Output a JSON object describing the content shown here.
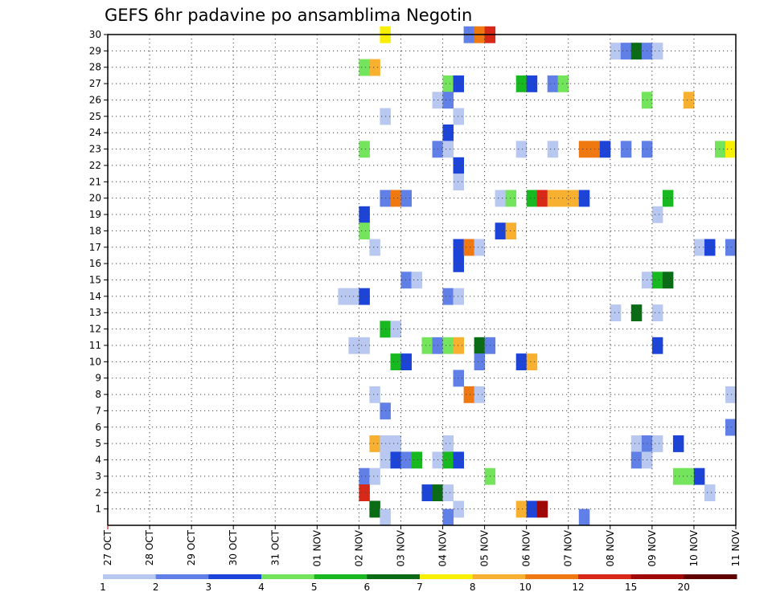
{
  "chart_data": {
    "type": "heatmap",
    "title": "GEFS 6hr padavine po ansamblima Negotin",
    "x_ticks": [
      "27 OCT",
      "28 OCT",
      "29 OCT",
      "30 OCT",
      "31 OCT",
      "01 NOV",
      "02 NOV",
      "03 NOV",
      "04 NOV",
      "05 NOV",
      "06 NOV",
      "07 NOV",
      "08 NOV",
      "09 NOV",
      "10 NOV",
      "11 NOV"
    ],
    "y_ticks": [
      "1",
      "2",
      "3",
      "4",
      "5",
      "6",
      "7",
      "8",
      "9",
      "10",
      "11",
      "12",
      "13",
      "14",
      "15",
      "16",
      "17",
      "18",
      "19",
      "20",
      "21",
      "22",
      "23",
      "24",
      "25",
      "26",
      "27",
      "28",
      "29",
      "30"
    ],
    "xlim_days": [
      0,
      15
    ],
    "ylim": [
      0,
      30
    ],
    "grid": true,
    "legend_position": "bottom",
    "legend_labels": [
      "1",
      "2",
      "3",
      "4",
      "5",
      "6",
      "7",
      "8",
      "10",
      "12",
      "15",
      "20"
    ],
    "legend_colors": [
      "#b8c8f0",
      "#6080e8",
      "#1c44d8",
      "#74e45c",
      "#18b820",
      "#0a6c14",
      "#f8f000",
      "#f8b030",
      "#f07810",
      "#d82818",
      "#a00808",
      "#600000"
    ],
    "cell_width_days": 0.25,
    "cells": [
      {
        "m": 30,
        "d": 6.5,
        "c": 6
      },
      {
        "m": 30,
        "d": 8.5,
        "c": 1
      },
      {
        "m": 30,
        "d": 8.75,
        "c": 8
      },
      {
        "m": 30,
        "d": 9.0,
        "c": 9
      },
      {
        "m": 29,
        "d": 12.0,
        "c": 0
      },
      {
        "m": 29,
        "d": 12.25,
        "c": 1
      },
      {
        "m": 29,
        "d": 12.5,
        "c": 5
      },
      {
        "m": 29,
        "d": 12.75,
        "c": 1
      },
      {
        "m": 29,
        "d": 13.0,
        "c": 0
      },
      {
        "m": 28,
        "d": 6.0,
        "c": 3
      },
      {
        "m": 28,
        "d": 6.25,
        "c": 7
      },
      {
        "m": 27,
        "d": 8.0,
        "c": 3
      },
      {
        "m": 27,
        "d": 8.25,
        "c": 2
      },
      {
        "m": 27,
        "d": 9.75,
        "c": 4
      },
      {
        "m": 27,
        "d": 10.0,
        "c": 2
      },
      {
        "m": 27,
        "d": 10.5,
        "c": 1
      },
      {
        "m": 27,
        "d": 10.75,
        "c": 3
      },
      {
        "m": 26,
        "d": 7.75,
        "c": 0
      },
      {
        "m": 26,
        "d": 8.0,
        "c": 1
      },
      {
        "m": 26,
        "d": 12.75,
        "c": 3
      },
      {
        "m": 26,
        "d": 13.75,
        "c": 7
      },
      {
        "m": 25,
        "d": 6.5,
        "c": 0
      },
      {
        "m": 25,
        "d": 8.25,
        "c": 0
      },
      {
        "m": 24,
        "d": 8.0,
        "c": 2
      },
      {
        "m": 23,
        "d": 6.0,
        "c": 3
      },
      {
        "m": 23,
        "d": 7.75,
        "c": 1
      },
      {
        "m": 23,
        "d": 8.0,
        "c": 0
      },
      {
        "m": 23,
        "d": 9.75,
        "c": 0
      },
      {
        "m": 23,
        "d": 10.5,
        "c": 0
      },
      {
        "m": 23,
        "d": 11.25,
        "c": 8
      },
      {
        "m": 23,
        "d": 11.5,
        "c": 8
      },
      {
        "m": 23,
        "d": 11.75,
        "c": 2
      },
      {
        "m": 23,
        "d": 12.25,
        "c": 1
      },
      {
        "m": 23,
        "d": 12.75,
        "c": 1
      },
      {
        "m": 23,
        "d": 14.5,
        "c": 3
      },
      {
        "m": 23,
        "d": 14.75,
        "c": 6
      },
      {
        "m": 22,
        "d": 8.25,
        "c": 2
      },
      {
        "m": 21,
        "d": 8.25,
        "c": 0
      },
      {
        "m": 20,
        "d": 6.5,
        "c": 1
      },
      {
        "m": 20,
        "d": 6.75,
        "c": 8
      },
      {
        "m": 20,
        "d": 7.0,
        "c": 1
      },
      {
        "m": 20,
        "d": 9.25,
        "c": 0
      },
      {
        "m": 20,
        "d": 9.5,
        "c": 3
      },
      {
        "m": 20,
        "d": 10.0,
        "c": 4
      },
      {
        "m": 20,
        "d": 10.25,
        "c": 9
      },
      {
        "m": 20,
        "d": 10.5,
        "c": 7
      },
      {
        "m": 20,
        "d": 10.75,
        "c": 7
      },
      {
        "m": 20,
        "d": 11.0,
        "c": 7
      },
      {
        "m": 20,
        "d": 11.25,
        "c": 2
      },
      {
        "m": 20,
        "d": 13.25,
        "c": 4
      },
      {
        "m": 19,
        "d": 6.0,
        "c": 2
      },
      {
        "m": 19,
        "d": 13.0,
        "c": 0
      },
      {
        "m": 18,
        "d": 6.0,
        "c": 3
      },
      {
        "m": 18,
        "d": 9.25,
        "c": 2
      },
      {
        "m": 18,
        "d": 9.5,
        "c": 7
      },
      {
        "m": 17,
        "d": 6.25,
        "c": 0
      },
      {
        "m": 17,
        "d": 8.25,
        "c": 2
      },
      {
        "m": 17,
        "d": 8.5,
        "c": 8
      },
      {
        "m": 17,
        "d": 8.75,
        "c": 0
      },
      {
        "m": 17,
        "d": 14.0,
        "c": 0
      },
      {
        "m": 17,
        "d": 14.25,
        "c": 2
      },
      {
        "m": 17,
        "d": 14.75,
        "c": 1
      },
      {
        "m": 16,
        "d": 8.25,
        "c": 2
      },
      {
        "m": 15,
        "d": 7.0,
        "c": 1
      },
      {
        "m": 15,
        "d": 7.25,
        "c": 0
      },
      {
        "m": 15,
        "d": 12.75,
        "c": 0
      },
      {
        "m": 15,
        "d": 13.0,
        "c": 4
      },
      {
        "m": 15,
        "d": 13.25,
        "c": 5
      },
      {
        "m": 14,
        "d": 5.5,
        "c": 0
      },
      {
        "m": 14,
        "d": 5.75,
        "c": 0
      },
      {
        "m": 14,
        "d": 6.0,
        "c": 2
      },
      {
        "m": 14,
        "d": 8.0,
        "c": 1
      },
      {
        "m": 14,
        "d": 8.25,
        "c": 0
      },
      {
        "m": 13,
        "d": 12.0,
        "c": 0
      },
      {
        "m": 13,
        "d": 12.5,
        "c": 5
      },
      {
        "m": 13,
        "d": 13.0,
        "c": 0
      },
      {
        "m": 12,
        "d": 6.5,
        "c": 4
      },
      {
        "m": 12,
        "d": 6.75,
        "c": 0
      },
      {
        "m": 11,
        "d": 5.75,
        "c": 0
      },
      {
        "m": 11,
        "d": 6.0,
        "c": 0
      },
      {
        "m": 11,
        "d": 7.5,
        "c": 3
      },
      {
        "m": 11,
        "d": 7.75,
        "c": 1
      },
      {
        "m": 11,
        "d": 8.0,
        "c": 3
      },
      {
        "m": 11,
        "d": 8.25,
        "c": 7
      },
      {
        "m": 11,
        "d": 8.75,
        "c": 5
      },
      {
        "m": 11,
        "d": 9.0,
        "c": 1
      },
      {
        "m": 11,
        "d": 13.0,
        "c": 2
      },
      {
        "m": 10,
        "d": 6.75,
        "c": 4
      },
      {
        "m": 10,
        "d": 7.0,
        "c": 2
      },
      {
        "m": 10,
        "d": 8.75,
        "c": 1
      },
      {
        "m": 10,
        "d": 9.75,
        "c": 2
      },
      {
        "m": 10,
        "d": 10.0,
        "c": 7
      },
      {
        "m": 9,
        "d": 8.25,
        "c": 1
      },
      {
        "m": 8,
        "d": 6.25,
        "c": 0
      },
      {
        "m": 8,
        "d": 8.5,
        "c": 8
      },
      {
        "m": 8,
        "d": 8.75,
        "c": 0
      },
      {
        "m": 8,
        "d": 14.75,
        "c": 0
      },
      {
        "m": 7,
        "d": 6.5,
        "c": 1
      },
      {
        "m": 6,
        "d": 14.75,
        "c": 1
      },
      {
        "m": 5,
        "d": 6.25,
        "c": 7
      },
      {
        "m": 5,
        "d": 6.5,
        "c": 0
      },
      {
        "m": 5,
        "d": 6.75,
        "c": 0
      },
      {
        "m": 5,
        "d": 8.0,
        "c": 0
      },
      {
        "m": 5,
        "d": 12.5,
        "c": 0
      },
      {
        "m": 5,
        "d": 12.75,
        "c": 1
      },
      {
        "m": 5,
        "d": 13.0,
        "c": 0
      },
      {
        "m": 5,
        "d": 13.5,
        "c": 2
      },
      {
        "m": 4,
        "d": 6.5,
        "c": 0
      },
      {
        "m": 4,
        "d": 6.75,
        "c": 2
      },
      {
        "m": 4,
        "d": 7.0,
        "c": 1
      },
      {
        "m": 4,
        "d": 7.25,
        "c": 4
      },
      {
        "m": 4,
        "d": 7.75,
        "c": 0
      },
      {
        "m": 4,
        "d": 8.0,
        "c": 4
      },
      {
        "m": 4,
        "d": 8.25,
        "c": 2
      },
      {
        "m": 4,
        "d": 12.5,
        "c": 1
      },
      {
        "m": 4,
        "d": 12.75,
        "c": 0
      },
      {
        "m": 3,
        "d": 6.0,
        "c": 1
      },
      {
        "m": 3,
        "d": 6.25,
        "c": 0
      },
      {
        "m": 3,
        "d": 9.0,
        "c": 3
      },
      {
        "m": 3,
        "d": 13.5,
        "c": 3
      },
      {
        "m": 3,
        "d": 13.75,
        "c": 3
      },
      {
        "m": 3,
        "d": 14.0,
        "c": 2
      },
      {
        "m": 2,
        "d": 6.0,
        "c": 9
      },
      {
        "m": 2,
        "d": 7.5,
        "c": 2
      },
      {
        "m": 2,
        "d": 7.75,
        "c": 5
      },
      {
        "m": 2,
        "d": 8.0,
        "c": 0
      },
      {
        "m": 2,
        "d": 14.25,
        "c": 0
      },
      {
        "m": 1,
        "d": 6.25,
        "c": 5
      },
      {
        "m": 1,
        "d": 8.25,
        "c": 0
      },
      {
        "m": 1,
        "d": 9.75,
        "c": 7
      },
      {
        "m": 1,
        "d": 10.0,
        "c": 2
      },
      {
        "m": 1,
        "d": 10.25,
        "c": 10
      },
      {
        "m": 0.5,
        "d": 6.5,
        "c": 0
      },
      {
        "m": 0.5,
        "d": 8.0,
        "c": 1
      },
      {
        "m": 0.5,
        "d": 11.25,
        "c": 1
      }
    ]
  }
}
